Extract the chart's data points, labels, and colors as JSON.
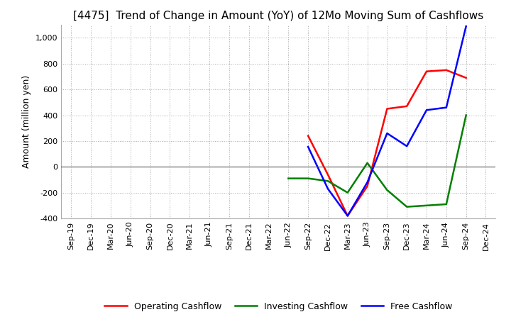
{
  "title": "[4475]  Trend of Change in Amount (YoY) of 12Mo Moving Sum of Cashflows",
  "ylabel": "Amount (million yen)",
  "ylim": [
    -400,
    1100
  ],
  "yticks": [
    -400,
    -200,
    0,
    200,
    400,
    600,
    800,
    1000
  ],
  "x_labels": [
    "Sep-19",
    "Dec-19",
    "Mar-20",
    "Jun-20",
    "Sep-20",
    "Dec-20",
    "Mar-21",
    "Jun-21",
    "Sep-21",
    "Dec-21",
    "Mar-22",
    "Jun-22",
    "Sep-22",
    "Dec-22",
    "Mar-23",
    "Jun-23",
    "Sep-23",
    "Dec-23",
    "Mar-24",
    "Jun-24",
    "Sep-24",
    "Dec-24"
  ],
  "operating_cashflow": [
    null,
    null,
    null,
    null,
    null,
    null,
    null,
    null,
    null,
    null,
    null,
    null,
    240,
    -60,
    -380,
    -150,
    450,
    470,
    740,
    750,
    690,
    null
  ],
  "investing_cashflow": [
    null,
    null,
    null,
    null,
    null,
    null,
    null,
    null,
    null,
    null,
    null,
    -90,
    -90,
    -110,
    -200,
    30,
    -180,
    -310,
    -300,
    -290,
    400,
    null
  ],
  "free_cashflow": [
    null,
    null,
    null,
    null,
    null,
    null,
    null,
    null,
    null,
    null,
    null,
    null,
    155,
    -170,
    -380,
    -120,
    260,
    160,
    440,
    460,
    1090,
    null
  ],
  "operating_color": "#ff0000",
  "investing_color": "#008000",
  "free_color": "#0000ff",
  "background_color": "#ffffff",
  "grid_color": "#aaaaaa",
  "title_fontsize": 11,
  "axis_fontsize": 9,
  "tick_fontsize": 8
}
